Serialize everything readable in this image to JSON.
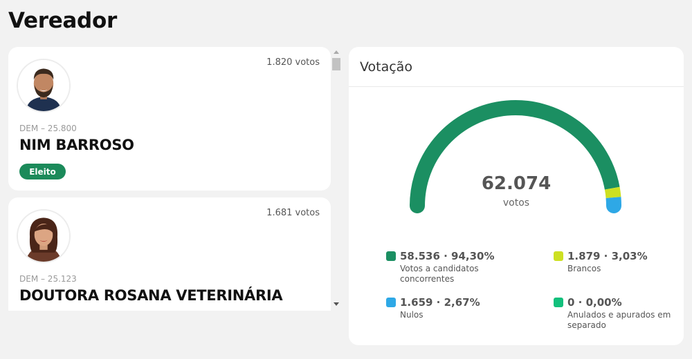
{
  "page": {
    "title": "Vereador"
  },
  "candidates": [
    {
      "votes": "1.820 votos",
      "party": "DEM – 25.800",
      "name": "NIM BARROSO",
      "status": "Eleito"
    },
    {
      "votes": "1.681 votos",
      "party": "DEM – 25.123",
      "name": "DOUTORA ROSANA VETERINÁRIA",
      "status": ""
    }
  ],
  "votacao": {
    "title": "Votação",
    "total": "62.074",
    "unit": "votos",
    "colors": {
      "candidatos": "#1b8f62",
      "brancos": "#cde022",
      "nulos": "#2ea8e6",
      "anulados": "#12c07c"
    },
    "legend": [
      {
        "value": "58.536 · 94,30%",
        "label": "Votos a candidatos concorrentes",
        "color": "#1b8f62"
      },
      {
        "value": "1.879 · 3,03%",
        "label": "Brancos",
        "color": "#cde022"
      },
      {
        "value": "1.659 · 2,67%",
        "label": "Nulos",
        "color": "#2ea8e6"
      },
      {
        "value": "0 · 0,00%",
        "label": "Anulados e apurados em separado",
        "color": "#12c07c"
      }
    ],
    "shares": [
      0.943,
      0.0303,
      0.0267,
      0.0
    ]
  }
}
